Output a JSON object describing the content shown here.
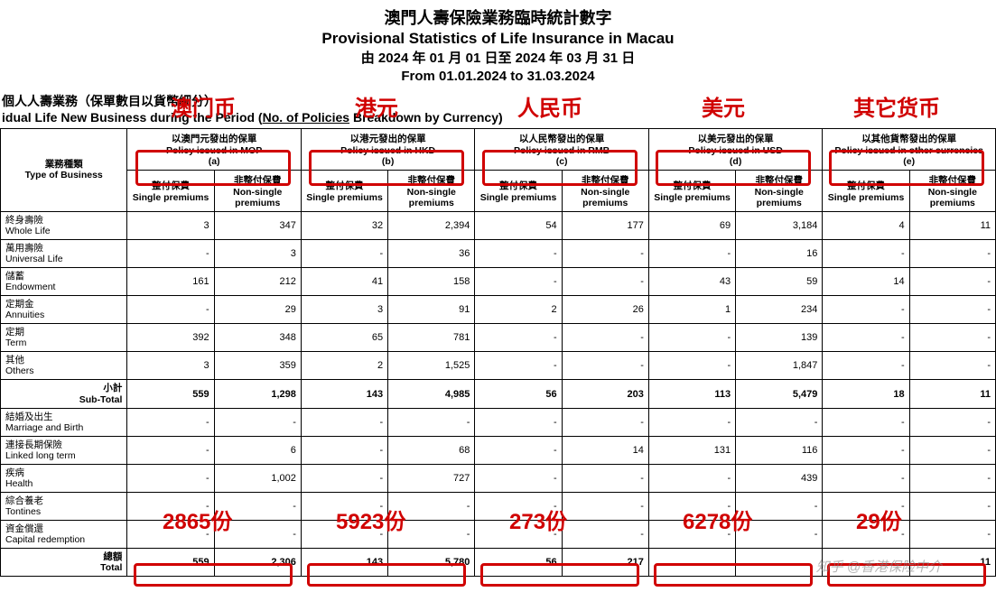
{
  "title": {
    "zh": "澳門人壽保險業務臨時統計數字",
    "en": "Provisional Statistics of Life Insurance in Macau",
    "date_zh": "由 2024 年 01 月 01 日至 2024 年 03 月 31 日",
    "date_en": "From 01.01.2024 to 31.03.2024"
  },
  "subtitle": {
    "zh": "個人人壽業務（保單數目以貨幣細分）",
    "en_pre": "idual Life New Business during the Period (",
    "en_ul": "No. of Policies",
    "en_post": " Breakdown by Currency)"
  },
  "header": {
    "type_zh": "業務種類",
    "type_en": "Type of Business",
    "currencies": [
      {
        "zh": "以澳門元發出的保單",
        "en": "Policy issued in MOP",
        "code": "(a)"
      },
      {
        "zh": "以港元發出的保單",
        "en": "Policy issued in HKD",
        "code": "(b)"
      },
      {
        "zh": "以人民幣發出的保單",
        "en": "Policy issued in RMB",
        "code": "(c)"
      },
      {
        "zh": "以美元發出的保單",
        "en": "Policy issued in USD",
        "code": "(d)"
      },
      {
        "zh": "以其他貨幣發出的保單",
        "en": "Policy issued in other currencies",
        "code": "(e)"
      }
    ],
    "sub": {
      "single_zh": "整付保費",
      "single_en": "Single premiums",
      "nonsingle_zh": "非整付保費",
      "nonsingle_en": "Non-single premiums"
    }
  },
  "rows": [
    {
      "zh": "終身壽險",
      "en": "Whole Life",
      "v": [
        "3",
        "347",
        "32",
        "2,394",
        "54",
        "177",
        "69",
        "3,184",
        "4",
        "11"
      ]
    },
    {
      "zh": "萬用壽險",
      "en": "Universal Life",
      "v": [
        "-",
        "3",
        "-",
        "36",
        "-",
        "-",
        "-",
        "16",
        "-",
        "-"
      ]
    },
    {
      "zh": "儲蓄",
      "en": "Endowment",
      "v": [
        "161",
        "212",
        "41",
        "158",
        "-",
        "-",
        "43",
        "59",
        "14",
        "-"
      ]
    },
    {
      "zh": "定期金",
      "en": "Annuities",
      "v": [
        "-",
        "29",
        "3",
        "91",
        "2",
        "26",
        "1",
        "234",
        "-",
        "-"
      ]
    },
    {
      "zh": "定期",
      "en": "Term",
      "v": [
        "392",
        "348",
        "65",
        "781",
        "-",
        "-",
        "-",
        "139",
        "-",
        "-"
      ]
    },
    {
      "zh": "其他",
      "en": "Others",
      "v": [
        "3",
        "359",
        "2",
        "1,525",
        "-",
        "-",
        "-",
        "1,847",
        "-",
        "-"
      ]
    }
  ],
  "subtotal": {
    "zh": "小計",
    "en": "Sub-Total",
    "v": [
      "559",
      "1,298",
      "143",
      "4,985",
      "56",
      "203",
      "113",
      "5,479",
      "18",
      "11"
    ]
  },
  "rows2": [
    {
      "zh": "結婚及出生",
      "en": "Marriage and Birth",
      "v": [
        "-",
        "-",
        "-",
        "-",
        "-",
        "-",
        "-",
        "-",
        "-",
        "-"
      ]
    },
    {
      "zh": "連接長期保險",
      "en": "Linked long term",
      "v": [
        "-",
        "6",
        "-",
        "68",
        "-",
        "14",
        "131",
        "116",
        "-",
        "-"
      ]
    },
    {
      "zh": "疾病",
      "en": "Health",
      "v": [
        "-",
        "1,002",
        "-",
        "727",
        "-",
        "-",
        "-",
        "439",
        "-",
        "-"
      ]
    },
    {
      "zh": "綜合養老",
      "en": "Tontines",
      "v": [
        "-",
        "-",
        "-",
        "-",
        "-",
        "-",
        "-",
        "-",
        "-",
        "-"
      ]
    },
    {
      "zh": "資金償還",
      "en": "Capital redemption",
      "v": [
        "-",
        "-",
        "-",
        "-",
        "-",
        "-",
        "-",
        "-",
        "-",
        "-"
      ]
    }
  ],
  "total": {
    "zh": "總額",
    "en": "Total",
    "v": [
      "559",
      "2,306",
      "143",
      "5,780",
      "56",
      "217",
      "",
      "",
      "",
      "11"
    ]
  },
  "annotations": {
    "currency_labels": [
      "澳门币",
      "港元",
      "人民币",
      "美元",
      "其它货币"
    ],
    "count_labels": [
      "2865份",
      "5923份",
      "273份",
      "6278份",
      "29份"
    ],
    "color": "#d00000",
    "box_color": "#d00000"
  },
  "watermark": "知乎  @香港保险中介",
  "style": {
    "font_family": "Microsoft YaHei, PingFang SC, Arial, sans-serif",
    "table_border_color": "#000000",
    "background": "#ffffff",
    "annotation_fontsize": 24,
    "title_fontsize": 18
  }
}
